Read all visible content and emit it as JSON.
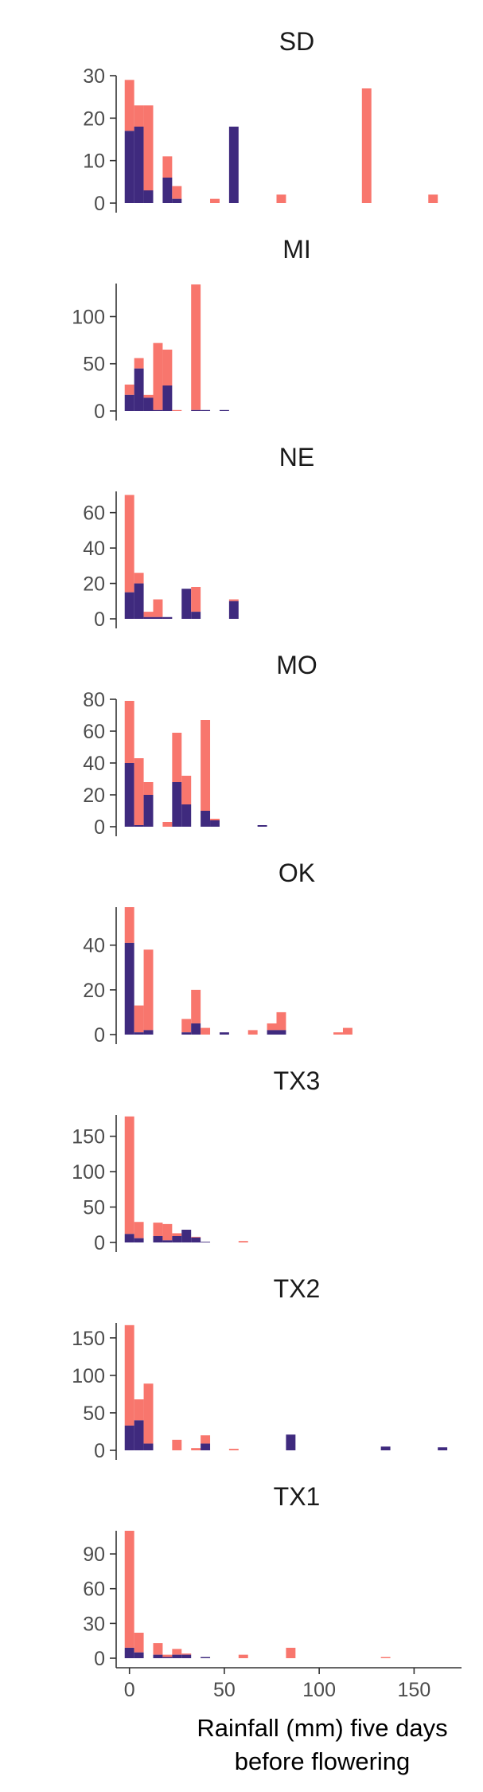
{
  "chart_data": {
    "type": "bar",
    "layout": "stacked-histogram-small-multiples",
    "xlabel": "Rainfall (mm) five days before flowering",
    "xlabel_lines": [
      "Rainfall (mm) five days",
      "before flowering"
    ],
    "xlim": [
      -7,
      175
    ],
    "x_ticks": [
      0,
      50,
      100,
      150
    ],
    "bin_width": 5,
    "colors": {
      "top": "#F8766D",
      "bottom": "#3F2A7E"
    },
    "panels": [
      {
        "title": "SD",
        "ylim": [
          0,
          30
        ],
        "y_ticks": [
          0,
          10,
          20,
          30
        ],
        "bins": [
          {
            "x": 0,
            "total": 29,
            "dark": 17
          },
          {
            "x": 5,
            "total": 23,
            "dark": 18
          },
          {
            "x": 10,
            "total": 23,
            "dark": 3
          },
          {
            "x": 20,
            "total": 11,
            "dark": 6
          },
          {
            "x": 25,
            "total": 4,
            "dark": 1
          },
          {
            "x": 45,
            "total": 1,
            "dark": 0
          },
          {
            "x": 55,
            "total": 18,
            "dark": 18
          },
          {
            "x": 80,
            "total": 2,
            "dark": 0
          },
          {
            "x": 125,
            "total": 27,
            "dark": 0
          },
          {
            "x": 160,
            "total": 2,
            "dark": 0
          }
        ]
      },
      {
        "title": "MI",
        "ylim": [
          0,
          135
        ],
        "y_ticks": [
          0,
          50,
          100
        ],
        "bins": [
          {
            "x": 0,
            "total": 28,
            "dark": 17
          },
          {
            "x": 5,
            "total": 56,
            "dark": 45
          },
          {
            "x": 10,
            "total": 17,
            "dark": 14
          },
          {
            "x": 15,
            "total": 72,
            "dark": 1
          },
          {
            "x": 20,
            "total": 65,
            "dark": 27
          },
          {
            "x": 25,
            "total": 1,
            "dark": 0
          },
          {
            "x": 35,
            "total": 134,
            "dark": 1
          },
          {
            "x": 40,
            "total": 1,
            "dark": 1
          },
          {
            "x": 50,
            "total": 1,
            "dark": 1
          }
        ]
      },
      {
        "title": "NE",
        "ylim": [
          0,
          72
        ],
        "y_ticks": [
          0,
          20,
          40,
          60
        ],
        "bins": [
          {
            "x": 0,
            "total": 70,
            "dark": 15
          },
          {
            "x": 5,
            "total": 26,
            "dark": 20
          },
          {
            "x": 10,
            "total": 4,
            "dark": 1
          },
          {
            "x": 15,
            "total": 11,
            "dark": 1
          },
          {
            "x": 20,
            "total": 1,
            "dark": 1
          },
          {
            "x": 30,
            "total": 17,
            "dark": 17
          },
          {
            "x": 35,
            "total": 18,
            "dark": 4
          },
          {
            "x": 55,
            "total": 11,
            "dark": 10
          }
        ]
      },
      {
        "title": "MO",
        "ylim": [
          0,
          80
        ],
        "y_ticks": [
          0,
          20,
          40,
          60,
          80
        ],
        "bins": [
          {
            "x": 0,
            "total": 79,
            "dark": 40
          },
          {
            "x": 5,
            "total": 43,
            "dark": 1
          },
          {
            "x": 10,
            "total": 28,
            "dark": 20
          },
          {
            "x": 20,
            "total": 3,
            "dark": 0
          },
          {
            "x": 25,
            "total": 59,
            "dark": 28
          },
          {
            "x": 30,
            "total": 32,
            "dark": 14
          },
          {
            "x": 40,
            "total": 67,
            "dark": 10
          },
          {
            "x": 45,
            "total": 5,
            "dark": 4
          },
          {
            "x": 70,
            "total": 1,
            "dark": 1
          }
        ]
      },
      {
        "title": "OK",
        "ylim": [
          0,
          57
        ],
        "y_ticks": [
          0,
          20,
          40
        ],
        "bins": [
          {
            "x": 0,
            "total": 57,
            "dark": 41
          },
          {
            "x": 5,
            "total": 13,
            "dark": 1
          },
          {
            "x": 10,
            "total": 38,
            "dark": 2
          },
          {
            "x": 30,
            "total": 7,
            "dark": 1
          },
          {
            "x": 35,
            "total": 20,
            "dark": 5
          },
          {
            "x": 40,
            "total": 3,
            "dark": 0
          },
          {
            "x": 50,
            "total": 1,
            "dark": 1
          },
          {
            "x": 65,
            "total": 2,
            "dark": 0
          },
          {
            "x": 75,
            "total": 5,
            "dark": 2
          },
          {
            "x": 80,
            "total": 10,
            "dark": 2
          },
          {
            "x": 110,
            "total": 1,
            "dark": 0
          },
          {
            "x": 115,
            "total": 3,
            "dark": 0
          }
        ]
      },
      {
        "title": "TX3",
        "ylim": [
          0,
          180
        ],
        "y_ticks": [
          0,
          50,
          100,
          150
        ],
        "bins": [
          {
            "x": 0,
            "total": 178,
            "dark": 12
          },
          {
            "x": 5,
            "total": 29,
            "dark": 6
          },
          {
            "x": 15,
            "total": 28,
            "dark": 9
          },
          {
            "x": 20,
            "total": 26,
            "dark": 3
          },
          {
            "x": 25,
            "total": 13,
            "dark": 9
          },
          {
            "x": 30,
            "total": 18,
            "dark": 18
          },
          {
            "x": 35,
            "total": 8,
            "dark": 7
          },
          {
            "x": 40,
            "total": 1,
            "dark": 1
          },
          {
            "x": 60,
            "total": 2,
            "dark": 0
          }
        ]
      },
      {
        "title": "TX2",
        "ylim": [
          0,
          170
        ],
        "y_ticks": [
          0,
          50,
          100,
          150
        ],
        "bins": [
          {
            "x": 0,
            "total": 167,
            "dark": 33
          },
          {
            "x": 5,
            "total": 68,
            "dark": 40
          },
          {
            "x": 10,
            "total": 89,
            "dark": 9
          },
          {
            "x": 25,
            "total": 14,
            "dark": 0
          },
          {
            "x": 35,
            "total": 3,
            "dark": 0
          },
          {
            "x": 40,
            "total": 20,
            "dark": 9
          },
          {
            "x": 55,
            "total": 2,
            "dark": 0
          },
          {
            "x": 85,
            "total": 21,
            "dark": 21
          },
          {
            "x": 135,
            "total": 5,
            "dark": 5
          },
          {
            "x": 165,
            "total": 4,
            "dark": 4
          }
        ]
      },
      {
        "title": "TX1",
        "ylim": [
          0,
          110
        ],
        "y_ticks": [
          0,
          30,
          60,
          90
        ],
        "bins": [
          {
            "x": 0,
            "total": 110,
            "dark": 9
          },
          {
            "x": 5,
            "total": 22,
            "dark": 5
          },
          {
            "x": 15,
            "total": 13,
            "dark": 3
          },
          {
            "x": 20,
            "total": 3,
            "dark": 1
          },
          {
            "x": 25,
            "total": 8,
            "dark": 3
          },
          {
            "x": 30,
            "total": 4,
            "dark": 3
          },
          {
            "x": 40,
            "total": 1,
            "dark": 1
          },
          {
            "x": 60,
            "total": 3,
            "dark": 0
          },
          {
            "x": 85,
            "total": 9,
            "dark": 0
          },
          {
            "x": 135,
            "total": 1,
            "dark": 0
          }
        ]
      }
    ]
  }
}
